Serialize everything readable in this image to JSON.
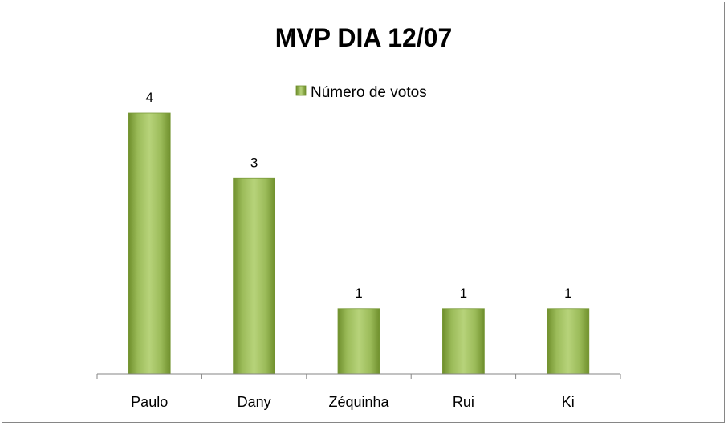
{
  "chart_data": {
    "type": "bar",
    "title": "MVP DIA 12/07",
    "categories": [
      "Paulo",
      "Dany",
      "Zéquinha",
      "Rui",
      "Ki"
    ],
    "series": [
      {
        "name": "Número de votos",
        "values": [
          4,
          3,
          1,
          1,
          1
        ],
        "color": "#9bbb59"
      }
    ],
    "data_labels": true,
    "ylim": [
      0,
      4
    ],
    "grid": false,
    "legend_position": "top"
  }
}
